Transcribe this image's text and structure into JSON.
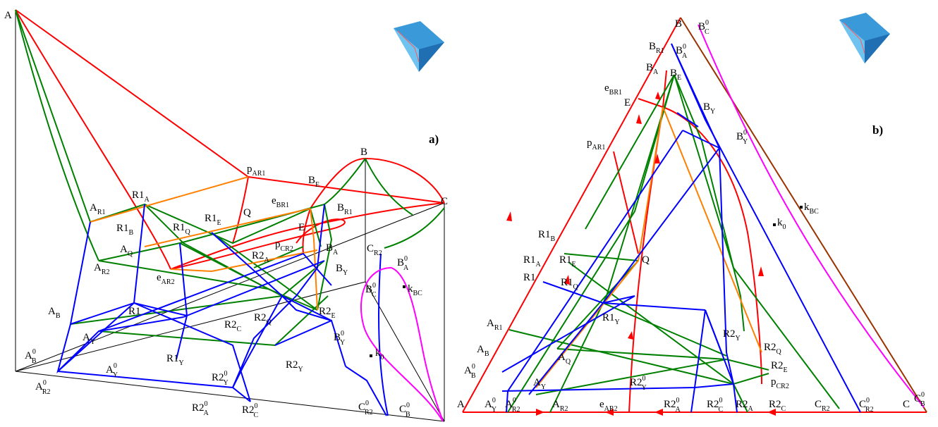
{
  "panels": {
    "a": {
      "tag": "a)",
      "labels": [
        {
          "id": "A",
          "base": "A",
          "sub": "",
          "sup": ""
        },
        {
          "id": "B",
          "base": "B",
          "sub": "",
          "sup": ""
        },
        {
          "id": "C",
          "base": "C",
          "sub": "",
          "sup": ""
        },
        {
          "id": "pAR1",
          "base": "p",
          "sub": "AR1",
          "sup": ""
        },
        {
          "id": "eBR1",
          "base": "e",
          "sub": "BR1",
          "sup": ""
        },
        {
          "id": "BE",
          "base": "B",
          "sub": "E",
          "sup": ""
        },
        {
          "id": "BR1",
          "base": "B",
          "sub": "R1",
          "sup": ""
        },
        {
          "id": "AR1",
          "base": "A",
          "sub": "R1",
          "sup": ""
        },
        {
          "id": "R1A",
          "base": "R1",
          "sub": "A",
          "sup": ""
        },
        {
          "id": "R1B",
          "base": "R1",
          "sub": "B",
          "sup": ""
        },
        {
          "id": "R1Q",
          "base": "R1",
          "sub": "Q",
          "sup": ""
        },
        {
          "id": "R1E",
          "base": "R1",
          "sub": "E",
          "sup": ""
        },
        {
          "id": "Q",
          "base": "Q",
          "sub": "",
          "sup": ""
        },
        {
          "id": "E",
          "base": "E",
          "sub": "",
          "sup": ""
        },
        {
          "id": "pCR2",
          "base": "p",
          "sub": "CR2",
          "sup": ""
        },
        {
          "id": "BA",
          "base": "B",
          "sub": "A",
          "sup": ""
        },
        {
          "id": "CR2",
          "base": "C",
          "sub": "R2",
          "sup": ""
        },
        {
          "id": "BA0",
          "base": "B",
          "sub": "A",
          "sup": "0"
        },
        {
          "id": "AQ",
          "base": "A",
          "sub": "Q",
          "sup": ""
        },
        {
          "id": "AR2",
          "base": "A",
          "sub": "R2",
          "sup": ""
        },
        {
          "id": "R2A",
          "base": "R2",
          "sub": "A",
          "sup": ""
        },
        {
          "id": "BY",
          "base": "B",
          "sub": "Y",
          "sup": ""
        },
        {
          "id": "eAR2",
          "base": "e",
          "sub": "AR2",
          "sup": ""
        },
        {
          "id": "BC0",
          "base": "B",
          "sub": "C",
          "sup": "0"
        },
        {
          "id": "kBC",
          "base": "k",
          "sub": "BC",
          "sup": ""
        },
        {
          "id": "R1",
          "base": "R1",
          "sub": "",
          "sup": ""
        },
        {
          "id": "AB",
          "base": "A",
          "sub": "B",
          "sup": ""
        },
        {
          "id": "R2C",
          "base": "R2",
          "sub": "C",
          "sup": ""
        },
        {
          "id": "R2Q",
          "base": "R2",
          "sub": "Q",
          "sup": ""
        },
        {
          "id": "R2E",
          "base": "R2",
          "sub": "E",
          "sup": ""
        },
        {
          "id": "AY",
          "base": "A",
          "sub": "Y",
          "sup": ""
        },
        {
          "id": "BY0",
          "base": "B",
          "sub": "Y",
          "sup": "0"
        },
        {
          "id": "k0",
          "base": "k",
          "sub": "0",
          "sup": ""
        },
        {
          "id": "R1Y",
          "base": "R1",
          "sub": "Y",
          "sup": ""
        },
        {
          "id": "R2Y",
          "base": "R2",
          "sub": "Y",
          "sup": ""
        },
        {
          "id": "AB0",
          "base": "A",
          "sub": "B",
          "sup": "0"
        },
        {
          "id": "AY0",
          "base": "A",
          "sub": "Y",
          "sup": "0"
        },
        {
          "id": "AR20",
          "base": "A",
          "sub": "R2",
          "sup": "0"
        },
        {
          "id": "R2Y0",
          "base": "R2",
          "sub": "Y",
          "sup": "0"
        },
        {
          "id": "R2A0",
          "base": "R2",
          "sub": "A",
          "sup": "0"
        },
        {
          "id": "R2C0",
          "base": "R2",
          "sub": "C",
          "sup": "0"
        },
        {
          "id": "CR20",
          "base": "C",
          "sub": "R2",
          "sup": "0"
        },
        {
          "id": "CB0",
          "base": "C",
          "sub": "B",
          "sup": "0"
        }
      ]
    },
    "b": {
      "tag": "b)",
      "labels": [
        {
          "id": "B",
          "base": "B",
          "sub": "",
          "sup": ""
        },
        {
          "id": "BC0",
          "base": "B",
          "sub": "C",
          "sup": "0"
        },
        {
          "id": "BR1",
          "base": "B",
          "sub": "R1",
          "sup": ""
        },
        {
          "id": "BA0",
          "base": "B",
          "sub": "A",
          "sup": "0"
        },
        {
          "id": "BA",
          "base": "B",
          "sub": "A",
          "sup": ""
        },
        {
          "id": "BE",
          "base": "B",
          "sub": "E",
          "sup": ""
        },
        {
          "id": "eBR1",
          "base": "e",
          "sub": "BR1",
          "sup": ""
        },
        {
          "id": "E",
          "base": "E",
          "sub": "",
          "sup": ""
        },
        {
          "id": "BY",
          "base": "B",
          "sub": "Y",
          "sup": ""
        },
        {
          "id": "pAR1",
          "base": "p",
          "sub": "AR1",
          "sup": ""
        },
        {
          "id": "BY0",
          "base": "B",
          "sub": "Y",
          "sup": "0"
        },
        {
          "id": "kBC",
          "base": "k",
          "sub": "BC",
          "sup": ""
        },
        {
          "id": "k0",
          "base": "k",
          "sub": "0",
          "sup": ""
        },
        {
          "id": "R1B",
          "base": "R1",
          "sub": "B",
          "sup": ""
        },
        {
          "id": "R1A",
          "base": "R1",
          "sub": "A",
          "sup": ""
        },
        {
          "id": "R1E",
          "base": "R1",
          "sub": "E",
          "sup": ""
        },
        {
          "id": "Q",
          "base": "Q",
          "sub": "",
          "sup": ""
        },
        {
          "id": "R1",
          "base": "R1",
          "sub": "",
          "sup": ""
        },
        {
          "id": "R1Q",
          "base": "R1",
          "sub": "Q",
          "sup": ""
        },
        {
          "id": "R1Y",
          "base": "R1",
          "sub": "Y",
          "sup": ""
        },
        {
          "id": "AR1",
          "base": "A",
          "sub": "R1",
          "sup": ""
        },
        {
          "id": "R2Y",
          "base": "R2",
          "sub": "Y",
          "sup": ""
        },
        {
          "id": "R2Q",
          "base": "R2",
          "sub": "Q",
          "sup": ""
        },
        {
          "id": "AB",
          "base": "A",
          "sub": "B",
          "sup": ""
        },
        {
          "id": "AQ",
          "base": "A",
          "sub": "Q",
          "sup": ""
        },
        {
          "id": "R2E",
          "base": "R2",
          "sub": "E",
          "sup": ""
        },
        {
          "id": "AB0",
          "base": "A",
          "sub": "B",
          "sup": "0"
        },
        {
          "id": "AY",
          "base": "A",
          "sub": "Y",
          "sup": ""
        },
        {
          "id": "pCR2",
          "base": "p",
          "sub": "CR2",
          "sup": ""
        },
        {
          "id": "R2Y0",
          "base": "R2",
          "sub": "Y",
          "sup": "0"
        },
        {
          "id": "A",
          "base": "A",
          "sub": "",
          "sup": ""
        },
        {
          "id": "AY0",
          "base": "A",
          "sub": "Y",
          "sup": "0"
        },
        {
          "id": "AR20",
          "base": "A",
          "sub": "R2",
          "sup": "0"
        },
        {
          "id": "AR2",
          "base": "A",
          "sub": "R2",
          "sup": ""
        },
        {
          "id": "eAR2",
          "base": "e",
          "sub": "AR2",
          "sup": ""
        },
        {
          "id": "R2A0",
          "base": "R2",
          "sub": "A",
          "sup": "0"
        },
        {
          "id": "R2C0",
          "base": "R2",
          "sub": "C",
          "sup": "0"
        },
        {
          "id": "R2A",
          "base": "R2",
          "sub": "A",
          "sup": ""
        },
        {
          "id": "R2C",
          "base": "R2",
          "sub": "C",
          "sup": ""
        },
        {
          "id": "CR2",
          "base": "C",
          "sub": "R2",
          "sup": ""
        },
        {
          "id": "CR20",
          "base": "C",
          "sub": "R2",
          "sup": "0"
        },
        {
          "id": "C",
          "base": "C",
          "sub": "",
          "sup": ""
        },
        {
          "id": "CB0",
          "base": "C",
          "sub": "B",
          "sup": "0"
        }
      ]
    }
  },
  "colors": {
    "boundary_lines": "#ff0000",
    "unirelated_lines": "#008000",
    "univalent_lines": "#0000ff",
    "ternary_lines": "#ff8000",
    "kBC_curve": "#ff00ff",
    "frame": "#000000",
    "binary_edge_BC": "#993300"
  },
  "icons": [
    "surface-thumbnail-icon",
    "surface-thumbnail-icon"
  ]
}
